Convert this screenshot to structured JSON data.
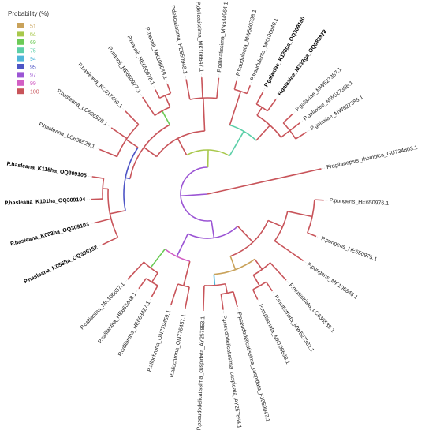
{
  "legend": {
    "title": "Probability (%)",
    "items": [
      {
        "label": "51",
        "color": "#C9A25A"
      },
      {
        "label": "64",
        "color": "#A8C84B"
      },
      {
        "label": "69",
        "color": "#6CCB57"
      },
      {
        "label": "75",
        "color": "#5CCFA8"
      },
      {
        "label": "94",
        "color": "#4FB6D9"
      },
      {
        "label": "95",
        "color": "#4E55C6"
      },
      {
        "label": "97",
        "color": "#9B55D4"
      },
      {
        "label": "99",
        "color": "#D25FC4"
      },
      {
        "label": "100",
        "color": "#C8545A"
      }
    ]
  },
  "leaves": [
    {
      "label": "Fragilariopsis_rhombica_GU734803.1",
      "bold": false
    },
    {
      "label": "P.galaxiae_MW527385.1",
      "bold": false
    },
    {
      "label": "P.galaxiae_MW527386.1",
      "bold": false
    },
    {
      "label": "P.galaxiae_MW527387.1",
      "bold": false
    },
    {
      "label": "P.galaxiae_M232ga_OQ083978",
      "bold": true
    },
    {
      "label": "P.galaxiae_K136ga_OQ309100",
      "bold": true
    },
    {
      "label": "P.fraudulenta_MK106640.1",
      "bold": false
    },
    {
      "label": "P.fraudulenta_MW560738.1",
      "bold": false
    },
    {
      "label": "P.delicatissima_MN634964.1",
      "bold": false
    },
    {
      "label": "P.delicatissima_MK106647.1",
      "bold": false
    },
    {
      "label": "P.delicatissima_HE650948.1",
      "bold": false
    },
    {
      "label": "P.mannii_MK106649.1",
      "bold": false
    },
    {
      "label": "P.mannii_HE650978.1",
      "bold": false
    },
    {
      "label": "P.mannii_HE650977.1",
      "bold": false
    },
    {
      "label": "P.hasleana_KC017450.1",
      "bold": false
    },
    {
      "label": "P.hasleana_LC636528.1",
      "bold": false
    },
    {
      "label": "P.hasleana_LC636529.1",
      "bold": false
    },
    {
      "label": "P.hasleana_K115ha_OQ309105",
      "bold": true
    },
    {
      "label": "P.hasleana_K101ha_OQ309104",
      "bold": true
    },
    {
      "label": "P.hasleana_K083ha_OQ309103",
      "bold": true
    },
    {
      "label": "P.hasleana_K056ha_OQ309152",
      "bold": true
    },
    {
      "label": "P.calliantha_MK106657.1",
      "bold": false
    },
    {
      "label": "P.calliantha_HE663448.1",
      "bold": false
    },
    {
      "label": "P.calliantha_HE663427.1",
      "bold": false
    },
    {
      "label": "P.allochrona_ON779459.1",
      "bold": false
    },
    {
      "label": "P.allochrona_ON775457.1",
      "bold": false
    },
    {
      "label": "P.pseudodelicatissima_cuspidata_AY257853.1",
      "bold": false
    },
    {
      "label": "P.pseudodelicatissima_cuspidata_AY257854.1",
      "bold": false
    },
    {
      "label": "P.pseudodelicatissima_cuspidata_FJ859047.1",
      "bold": false
    },
    {
      "label": "P.multistriata_MK106638.1",
      "bold": false
    },
    {
      "label": "P.multistriata_MW527382.1",
      "bold": false
    },
    {
      "label": "P.multistriata_LC636539.1",
      "bold": false
    },
    {
      "label": "P.pungens_MK106646.1",
      "bold": false
    },
    {
      "label": "P.pungens_HE650975.1",
      "bold": false
    },
    {
      "label": "P.pungens_HE650976.1",
      "bold": false
    }
  ]
}
